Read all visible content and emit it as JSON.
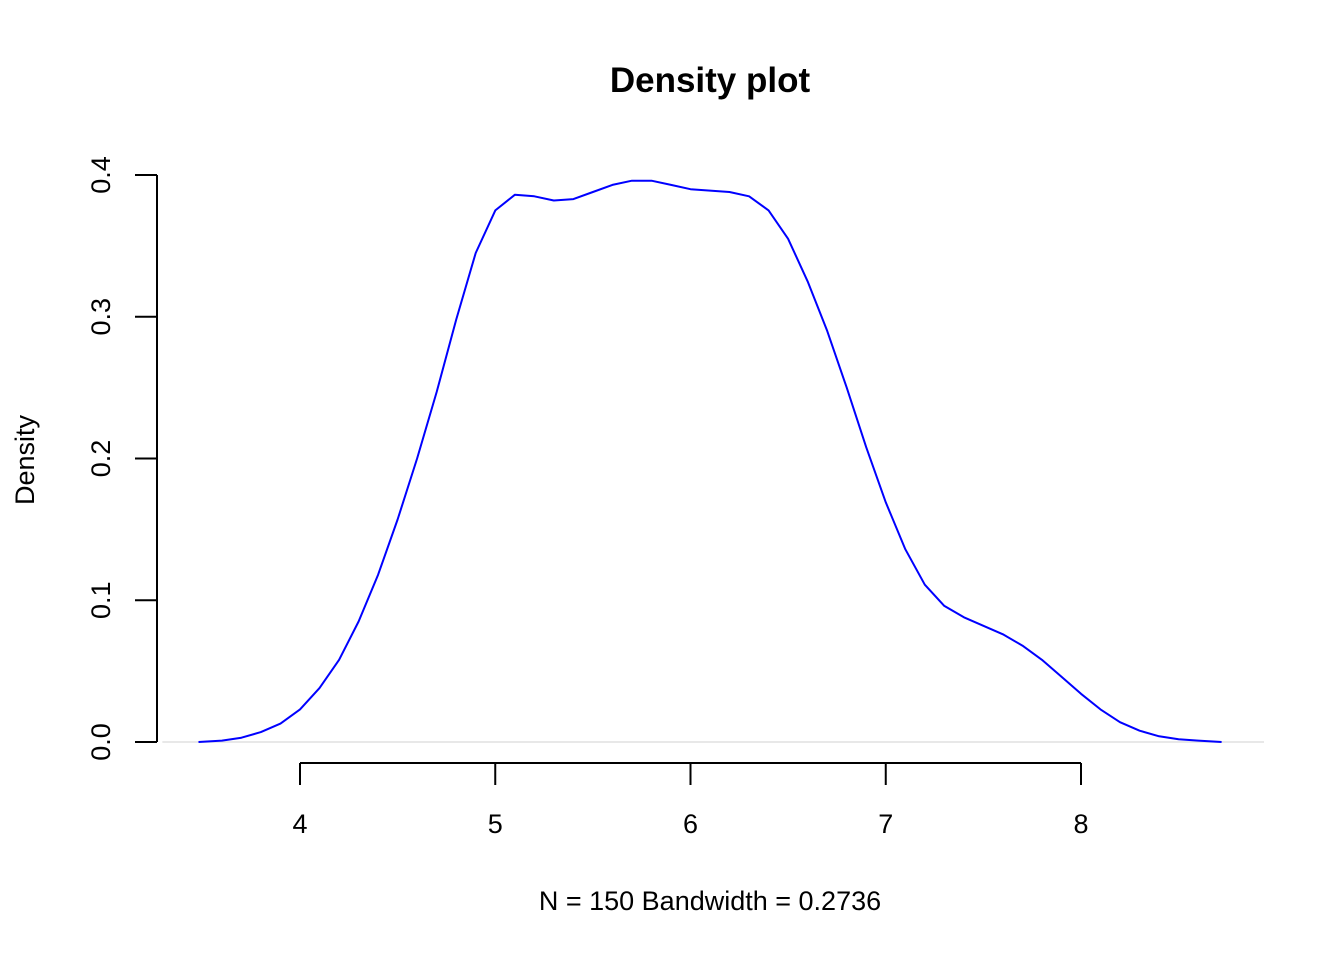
{
  "chart_data": {
    "type": "line",
    "title": "Density plot",
    "xlabel": "N = 150   Bandwidth = 0.2736",
    "ylabel": "Density",
    "xlim": [
      3.5,
      8.7
    ],
    "ylim": [
      0,
      0.4
    ],
    "x_ticks": [
      "4",
      "5",
      "6",
      "7",
      "8"
    ],
    "y_ticks": [
      "0.0",
      "0.1",
      "0.2",
      "0.3",
      "0.4"
    ],
    "grid": false,
    "baseline": 0,
    "baseline_color": "#e0e0e0",
    "series": [
      {
        "color": "#0000ff",
        "x": [
          3.48,
          3.6,
          3.7,
          3.8,
          3.9,
          4.0,
          4.1,
          4.2,
          4.3,
          4.4,
          4.5,
          4.6,
          4.7,
          4.8,
          4.9,
          5.0,
          5.1,
          5.2,
          5.3,
          5.4,
          5.5,
          5.6,
          5.7,
          5.8,
          5.9,
          6.0,
          6.1,
          6.2,
          6.3,
          6.4,
          6.5,
          6.6,
          6.7,
          6.8,
          6.9,
          7.0,
          7.1,
          7.2,
          7.3,
          7.4,
          7.5,
          7.6,
          7.7,
          7.8,
          7.9,
          8.0,
          8.1,
          8.2,
          8.3,
          8.4,
          8.5,
          8.6,
          8.72
        ],
        "y": [
          0.0,
          0.001,
          0.003,
          0.007,
          0.013,
          0.023,
          0.038,
          0.058,
          0.085,
          0.118,
          0.157,
          0.2,
          0.247,
          0.298,
          0.345,
          0.375,
          0.386,
          0.385,
          0.382,
          0.383,
          0.388,
          0.393,
          0.396,
          0.396,
          0.393,
          0.39,
          0.389,
          0.388,
          0.385,
          0.375,
          0.355,
          0.325,
          0.29,
          0.25,
          0.208,
          0.169,
          0.136,
          0.111,
          0.096,
          0.088,
          0.082,
          0.076,
          0.068,
          0.058,
          0.046,
          0.034,
          0.023,
          0.014,
          0.008,
          0.004,
          0.002,
          0.001,
          0.0
        ]
      }
    ]
  }
}
